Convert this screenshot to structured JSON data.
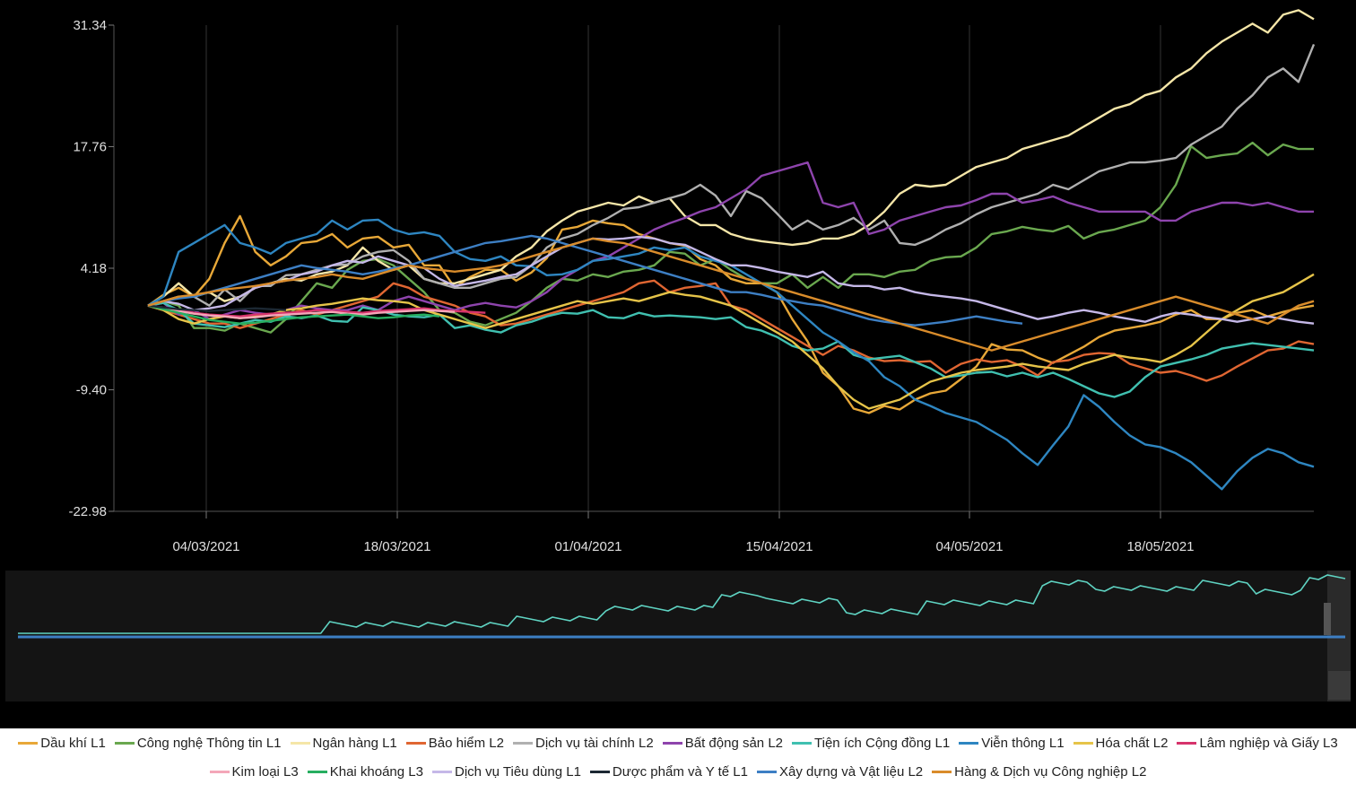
{
  "chart_data": {
    "type": "line",
    "y_ticks": [
      "31.34",
      "17.76",
      "4.18",
      "-9.40",
      "-22.98"
    ],
    "ylim": [
      -22.98,
      31.34
    ],
    "x_tick_labels": [
      "04/03/2021",
      "18/03/2021",
      "01/04/2021",
      "15/04/2021",
      "04/05/2021",
      "18/05/2021"
    ],
    "grid": "vertical",
    "legend_position": "bottom",
    "background": "#000000",
    "navigator": true,
    "series": [
      {
        "name": "Dầu khí L1",
        "color": "#e8a838",
        "values": [
          0,
          1.2,
          2,
          1,
          3,
          7,
          10,
          6,
          4.5,
          5.5,
          7,
          7.2,
          8,
          6.5,
          7.5,
          7.7,
          6.5,
          6.8,
          4.5,
          4.5,
          2,
          3.2,
          4,
          4,
          2.8,
          3.7,
          5.3,
          8.5,
          8.8,
          9.5,
          9.2,
          9,
          8,
          7.5,
          7,
          6.7,
          5.2,
          4.5,
          3,
          2.5,
          2.5,
          1.5,
          -1.5,
          -4,
          -7.5,
          -9,
          -11.5,
          -12,
          -11.2,
          -11.6,
          -10.5,
          -9.8,
          -9.5,
          -8.2,
          -6.8,
          -4.3,
          -4.9,
          -5,
          -5.8,
          -6.4,
          -5.5,
          -4.6,
          -3.5,
          -2.8,
          -2.5,
          -2.2,
          -1.8,
          -1,
          -0.5,
          -1.5,
          -1.5,
          -0.8,
          -0.5,
          -1.2,
          -0.7,
          -0.3,
          0
        ]
      },
      {
        "name": "Công nghệ Thông tin L1",
        "color": "#6aa84f",
        "values": [
          0,
          0.5,
          0,
          -2.5,
          -2.5,
          -2.8,
          -2,
          -2.5,
          -3,
          -1.5,
          0.5,
          2.5,
          2,
          4,
          5,
          5.2,
          4.5,
          3,
          1.5,
          -0.5,
          -0.8,
          -1.8,
          -2.2,
          -1.5,
          -0.8,
          0.5,
          2,
          3,
          2.8,
          3.5,
          3.2,
          3.8,
          4,
          4.5,
          6,
          5.8,
          4.5,
          5.2,
          4,
          3,
          2.5,
          2.5,
          3.5,
          2,
          3.2,
          2,
          3.5,
          3.5,
          3.2,
          3.8,
          4,
          5,
          5.4,
          5.5,
          6.5,
          8,
          8.3,
          8.8,
          8.5,
          8.3,
          8.9,
          7.5,
          8.2,
          8.5,
          9,
          9.5,
          11,
          13.5,
          17.8,
          16.5,
          16.8,
          17,
          18.2,
          16.8,
          18,
          17.5,
          17.5
        ]
      },
      {
        "name": "Ngân hàng L1",
        "color": "#f5e6a8",
        "values": [
          0,
          1,
          2.5,
          1,
          1.5,
          0.5,
          1,
          2,
          2.5,
          3,
          2.8,
          3.5,
          3.8,
          4.5,
          6.5,
          5,
          4,
          4.5,
          3,
          2.5,
          2.5,
          3,
          3.5,
          4,
          5.5,
          6.5,
          8.3,
          9.5,
          10.5,
          11,
          11.5,
          11.2,
          12.2,
          11.5,
          12,
          10,
          9,
          9,
          8,
          7.5,
          7.2,
          7,
          6.8,
          7,
          7.5,
          7.5,
          8,
          9,
          10.5,
          12.5,
          13.5,
          13.3,
          13.5,
          14.5,
          15.5,
          16,
          16.5,
          17.5,
          18,
          18.5,
          19,
          20,
          21,
          22,
          22.5,
          23.5,
          24,
          25.5,
          26.5,
          28.2,
          29.5,
          30.5,
          31.5,
          30.5,
          32.5,
          33,
          32
        ]
      },
      {
        "name": "Bảo hiểm L2",
        "color": "#e06632",
        "values": [
          0,
          -0.5,
          -1,
          -1.5,
          -2,
          -2,
          -2.5,
          -2,
          -1.5,
          -1,
          -0.5,
          -1,
          -0.5,
          0,
          0.5,
          1,
          2.5,
          2,
          1,
          0.5,
          0,
          -0.8,
          -1.2,
          -2.2,
          -2,
          -1.5,
          -1,
          -0.5,
          0,
          0.5,
          1,
          1.5,
          2.5,
          2.8,
          1.5,
          2,
          2.2,
          2.5,
          0,
          -0.5,
          -1.5,
          -2.5,
          -3.5,
          -4.5,
          -5.5,
          -4.5,
          -5,
          -5.8,
          -6.2,
          -6.1,
          -6.3,
          -6.2,
          -7.5,
          -6.5,
          -6,
          -6.3,
          -6.1,
          -6.8,
          -7.8,
          -6.3,
          -6.1,
          -5.5,
          -5.3,
          -5.4,
          -6.5,
          -7,
          -7.5,
          -7.3,
          -7.8,
          -8.4,
          -7.8,
          -6.8,
          -5.9,
          -5,
          -4.8,
          -4,
          -4.3
        ]
      },
      {
        "name": "Dịch vụ tài chính L2",
        "color": "#b0b0b0",
        "values": [
          0,
          0.5,
          1,
          1,
          0,
          1.8,
          0.5,
          2.2,
          2.2,
          3.4,
          3.5,
          4,
          4.5,
          4.6,
          5.5,
          6,
          6.2,
          5,
          3,
          2.5,
          2,
          2,
          2.5,
          3,
          3.2,
          4.5,
          6.5,
          7.5,
          8,
          9,
          9.8,
          10.8,
          11,
          11.5,
          12,
          12.5,
          13.5,
          12.3,
          10,
          12.8,
          12,
          10.3,
          8.5,
          9.5,
          8.5,
          9,
          9.8,
          8.5,
          9.5,
          7,
          6.8,
          7.5,
          8.5,
          9.2,
          10.2,
          11,
          11.5,
          12,
          12.5,
          13.5,
          13,
          14,
          15,
          15.5,
          16,
          16,
          16.2,
          16.5,
          18,
          19,
          20,
          22,
          23.5,
          25.5,
          26.5,
          25,
          29.2
        ]
      },
      {
        "name": "Bất động sản L2",
        "color": "#8e44ad",
        "values": [
          0,
          0.3,
          -1,
          -0.5,
          -1.5,
          -1,
          -0.5,
          -0.8,
          -1,
          -0.5,
          0,
          -0.3,
          -0.5,
          -0.5,
          0,
          -0.5,
          0.5,
          1,
          0.5,
          0,
          -0.5,
          0,
          0.3,
          0,
          -0.2,
          0.5,
          1.5,
          3,
          4,
          5,
          5.5,
          6.5,
          7.5,
          8.5,
          9.2,
          9.8,
          10.5,
          11,
          12,
          13,
          14.5,
          15,
          15.5,
          16,
          11.5,
          11,
          11.5,
          8,
          8.5,
          9.5,
          10,
          10.5,
          11,
          11.2,
          11.8,
          12.5,
          12.5,
          11.5,
          11.8,
          12.2,
          11.5,
          11,
          10.5,
          10.5,
          10.5,
          10.5,
          9.5,
          9.5,
          10.5,
          11,
          11.5,
          11.5,
          11.2,
          11.5,
          11,
          10.5,
          10.5
        ]
      },
      {
        "name": "Tiện ích Cộng đồng L1",
        "color": "#40c0b0",
        "values": [
          0,
          0.3,
          -0.5,
          -2,
          -2.2,
          -2.4,
          -2,
          -1.6,
          -1.8,
          -1.2,
          -1.4,
          -1.1,
          -1.7,
          -1.8,
          -0.2,
          -0.5,
          -1,
          -1.2,
          -1.3,
          -1,
          -2.5,
          -2.2,
          -2.7,
          -3,
          -2.2,
          -1.8,
          -1.2,
          -0.8,
          -0.9,
          -0.5,
          -1.3,
          -1.4,
          -0.8,
          -1.2,
          -1.1,
          -1.2,
          -1.3,
          -1.5,
          -1.3,
          -2.4,
          -2.8,
          -3.5,
          -4.5,
          -5,
          -4.8,
          -4,
          -5.5,
          -6,
          -5.8,
          -5.6,
          -6.3,
          -7,
          -8,
          -7.8,
          -7.5,
          -7.4,
          -7.9,
          -7.5,
          -8,
          -7.5,
          -8.2,
          -9,
          -9.8,
          -10.2,
          -9.6,
          -8,
          -6.8,
          -6.4,
          -6,
          -5.5,
          -4.8,
          -4.5,
          -4.2,
          -4.4,
          -4.6,
          -4.8,
          -5
        ]
      },
      {
        "name": "Viễn thông L1",
        "color": "#2e86c1",
        "values": [
          0,
          1,
          6,
          7,
          8,
          9,
          7,
          6.5,
          5.8,
          7,
          7.5,
          8,
          9.5,
          8.5,
          9.5,
          9.6,
          8.5,
          8,
          8.2,
          7.8,
          6,
          5.2,
          5,
          5.5,
          4.5,
          4.4,
          3.4,
          3.5,
          4,
          5,
          5.2,
          5.5,
          5.8,
          6.5,
          6.2,
          6.5,
          5.5,
          5,
          4.5,
          3.5,
          2.5,
          1.5,
          0,
          -1.5,
          -3,
          -4,
          -5.2,
          -6.2,
          -8,
          -9,
          -10.5,
          -11.2,
          -12,
          -12.5,
          -13,
          -14,
          -15,
          -16.5,
          -17.8,
          -15.6,
          -13.5,
          -10,
          -11.3,
          -13,
          -14.5,
          -15.5,
          -15.8,
          -16.5,
          -17.5,
          -19,
          -20.5,
          -18.5,
          -17,
          -16,
          -16.5,
          -17.5,
          -18
        ]
      },
      {
        "name": "Hóa chất L2",
        "color": "#e6c449",
        "values": [
          0,
          -0.5,
          -1.5,
          -2,
          -1.5,
          -1.2,
          -1.4,
          -1.2,
          -1,
          -0.5,
          -0.3,
          0,
          0.2,
          0.5,
          0.8,
          0.6,
          0.5,
          0.3,
          -0.5,
          -1,
          -1.5,
          -2,
          -2.5,
          -2,
          -1.5,
          -1,
          -0.5,
          0,
          0.5,
          0.2,
          0.5,
          0.8,
          0.5,
          1,
          1.5,
          1.2,
          1,
          0.5,
          0,
          -1,
          -2,
          -3,
          -4,
          -5.5,
          -7,
          -9,
          -10.5,
          -11.5,
          -11,
          -10.5,
          -9.5,
          -8.5,
          -8,
          -7.5,
          -7.2,
          -7,
          -6.8,
          -6.5,
          -6.8,
          -7,
          -7.2,
          -6.5,
          -6,
          -5.5,
          -5.8,
          -6,
          -6.3,
          -5.5,
          -4.5,
          -3,
          -1.5,
          -0.5,
          0.5,
          1,
          1.5,
          2.5,
          3.5
        ]
      },
      {
        "name": "Lâm nghiệp và Giấy L3",
        "color": "#d6336c",
        "values": [
          0,
          -0.2,
          -0.5,
          -0.8,
          -1,
          -1.1,
          -1.2,
          -1,
          -0.9,
          -0.8,
          -0.7,
          -0.5,
          -0.6,
          -0.7,
          -0.8,
          -0.6,
          -0.5,
          -0.4,
          -0.3,
          -0.5,
          -0.6,
          -0.7,
          -0.8
        ]
      },
      {
        "name": "Kim loại L3",
        "color": "#f4a7b9",
        "values": [
          0,
          -0.3,
          -0.6,
          -0.9,
          -1.1,
          -1.2,
          -1.4,
          -1.3,
          -1.1,
          -1,
          -0.9,
          -0.8,
          -0.7,
          -0.9,
          -1,
          -0.8,
          -0.7,
          -0.6,
          -0.5,
          -0.6,
          -0.7
        ]
      },
      {
        "name": "Khai khoáng L3",
        "color": "#27ae60",
        "values": [
          0,
          -0.4,
          -0.8,
          -1.2,
          -1.6,
          -1.8,
          -2,
          -1.9,
          -1.7,
          -1.5,
          -1.3,
          -1.2,
          -1.1,
          -1,
          -1.2,
          -1.4,
          -1.3,
          -1.1,
          -1,
          -1.2
        ]
      },
      {
        "name": "Dịch vụ Tiêu dùng L1",
        "color": "#c5b8e8",
        "values": [
          0,
          0.5,
          0.2,
          -0.5,
          -0.3,
          0,
          1,
          2,
          2.5,
          2.8,
          3.5,
          3.8,
          4.5,
          5,
          4.8,
          5.5,
          5,
          4.5,
          4.2,
          3,
          2.2,
          2.5,
          2.8,
          3.2,
          3.5,
          4.5,
          5.5,
          6.5,
          7,
          7.5,
          7.4,
          7.5,
          7.7,
          7.5,
          7,
          6.8,
          6,
          5.2,
          4.5,
          4.5,
          4.2,
          3.8,
          3.5,
          3.2,
          3.8,
          2.5,
          2.2,
          2.2,
          1.8,
          2,
          1.5,
          1.2,
          1,
          0.8,
          0.5,
          0,
          -0.5,
          -1,
          -1.5,
          -1.2,
          -0.8,
          -0.5,
          -0.8,
          -1.2,
          -1.5,
          -1.8,
          -1.2,
          -0.8,
          -1,
          -1.3,
          -1.5,
          -1.8,
          -1.5,
          -1.2,
          -1.5,
          -1.8,
          -2
        ]
      },
      {
        "name": "Dược phẩm và Y tế L1",
        "color": "#1c2833",
        "values": [
          0,
          -0.2,
          -0.4,
          -0.5,
          -0.6,
          -0.5,
          -0.4,
          -0.3,
          -0.4,
          -0.5
        ]
      },
      {
        "name": "Xây dựng và Vật liệu L2",
        "color": "#3d7fc4",
        "values": [
          0,
          0.5,
          0.8,
          1,
          1.5,
          2,
          2.5,
          3,
          3.5,
          4,
          4.5,
          4.2,
          4,
          3.8,
          3.5,
          3.8,
          4.2,
          4.5,
          5,
          5.5,
          6,
          6.5,
          7,
          7.2,
          7.5,
          7.8,
          7.5,
          7,
          6.5,
          6,
          5.5,
          5,
          4.5,
          4,
          3.5,
          3,
          2.5,
          2,
          1.5,
          1.5,
          1.2,
          0.8,
          0.5,
          0.2,
          0,
          -0.5,
          -1,
          -1.5,
          -1.8,
          -2,
          -2.2,
          -2,
          -1.8,
          -1.5,
          -1.2,
          -1.5,
          -1.8,
          -2
        ]
      },
      {
        "name": "Hàng & Dịch vụ Công nghiệp L2",
        "color": "#d98c2b",
        "values": [
          0,
          0.5,
          1,
          1.2,
          1.5,
          1.8,
          2,
          2.2,
          2.5,
          2.8,
          3,
          3.2,
          3.5,
          3.2,
          3,
          3.5,
          4,
          4.5,
          4.2,
          4,
          3.8,
          4,
          4.2,
          4.5,
          5,
          5.5,
          6,
          6.5,
          7,
          7.5,
          7.2,
          7,
          6.5,
          6,
          5.5,
          5,
          4.5,
          4,
          3.5,
          3,
          2.5,
          2,
          1.5,
          1,
          0.5,
          0,
          -0.5,
          -1,
          -1.5,
          -2,
          -2.5,
          -3,
          -3.5,
          -4,
          -4.5,
          -5,
          -4.5,
          -4,
          -3.5,
          -3,
          -2.5,
          -2,
          -1.5,
          -1,
          -0.5,
          0,
          0.5,
          1,
          0.5,
          0,
          -0.5,
          -1,
          -1.5,
          -2,
          -1,
          0,
          0.5
        ]
      }
    ]
  }
}
